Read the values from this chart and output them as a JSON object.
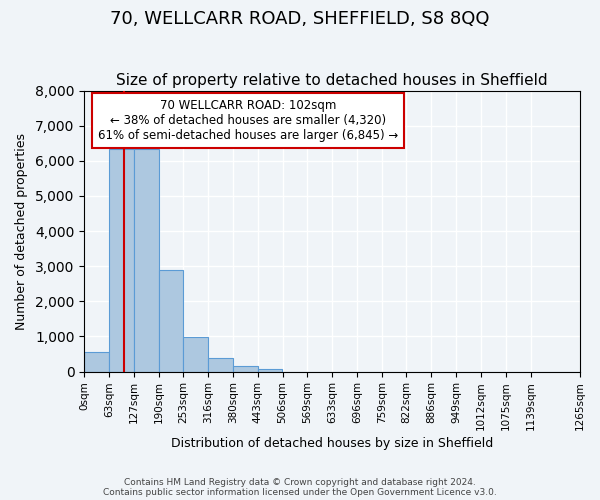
{
  "title1": "70, WELLCARR ROAD, SHEFFIELD, S8 8QQ",
  "title2": "Size of property relative to detached houses in Sheffield",
  "xlabel": "Distribution of detached houses by size in Sheffield",
  "ylabel": "Number of detached properties",
  "bar_values": [
    550,
    6350,
    6350,
    2900,
    975,
    380,
    160,
    80,
    0,
    0,
    0,
    0,
    0,
    0,
    0,
    0,
    0,
    0,
    0
  ],
  "bin_edges": [
    0,
    63,
    127,
    190,
    253,
    316,
    380,
    443,
    506,
    569,
    633,
    696,
    759,
    822,
    886,
    949,
    1012,
    1075,
    1139,
    1265
  ],
  "tick_labels": [
    "0sqm",
    "63sqm",
    "127sqm",
    "190sqm",
    "253sqm",
    "316sqm",
    "380sqm",
    "443sqm",
    "506sqm",
    "569sqm",
    "633sqm",
    "696sqm",
    "759sqm",
    "822sqm",
    "886sqm",
    "949sqm",
    "1012sqm",
    "1075sqm",
    "1139sqm",
    "1265sqm"
  ],
  "bar_color": "#adc8e0",
  "bar_edge_color": "#5b9bd5",
  "property_line_x": 102,
  "property_line_color": "#cc0000",
  "ylim": [
    0,
    8000
  ],
  "yticks": [
    0,
    1000,
    2000,
    3000,
    4000,
    5000,
    6000,
    7000,
    8000
  ],
  "annotation_title": "70 WELLCARR ROAD: 102sqm",
  "annotation_line1": "← 38% of detached houses are smaller (4,320)",
  "annotation_line2": "61% of semi-detached houses are larger (6,845) →",
  "annotation_box_color": "#ffffff",
  "annotation_box_edge": "#cc0000",
  "footer1": "Contains HM Land Registry data © Crown copyright and database right 2024.",
  "footer2": "Contains public sector information licensed under the Open Government Licence v3.0.",
  "bg_color": "#f0f4f8",
  "grid_color": "#ffffff",
  "title1_fontsize": 13,
  "title2_fontsize": 11
}
